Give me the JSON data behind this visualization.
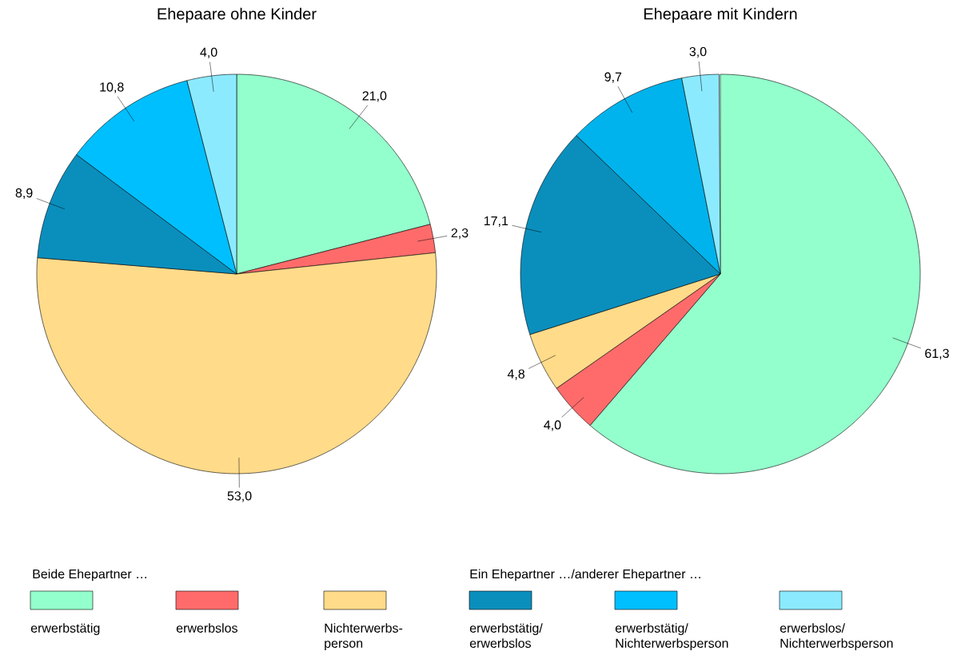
{
  "chart_data": [
    {
      "type": "pie",
      "title": "Ehepaare ohne Kinder",
      "legend_title": "Beide Ehepartner …",
      "legend": "bottom",
      "categories": [
        "erwerbstätig",
        "erwerbslos",
        "Nichterwerbs-person",
        "erwerbstätig/ erwerbslos",
        "erwerbstätig/ Nichterwerbsperson",
        "erwerbslos/ Nichterwerbsperson"
      ],
      "values": [
        21.0,
        2.3,
        53.0,
        8.9,
        10.8,
        4.0
      ],
      "value_labels": [
        "21,0",
        "2,3",
        "53,0",
        "8,9",
        "10,8",
        "4,0"
      ],
      "colors": [
        "#93ffcc",
        "#ff6b6b",
        "#ffdb8a",
        "#0a8fbd",
        "#00bfff",
        "#8ceaff"
      ]
    },
    {
      "type": "pie",
      "title": "Ehepaare mit Kindern",
      "legend_title": "Ein Ehepartner …/anderer Ehepartner …",
      "categories": [
        null,
        null,
        null,
        null,
        null,
        null
      ],
      "values": [
        61.3,
        4.0,
        4.8,
        17.1,
        9.7,
        3.0
      ],
      "value_labels": [
        "61,3",
        "4,0",
        "4,8",
        "17,1",
        "9,7",
        "3,0"
      ],
      "colors": [
        "#93ffcc",
        "#ff6b6b",
        "#ffdb8a",
        "#0a8fbd",
        "#00b3ec",
        "#8ceaff"
      ]
    }
  ]
}
